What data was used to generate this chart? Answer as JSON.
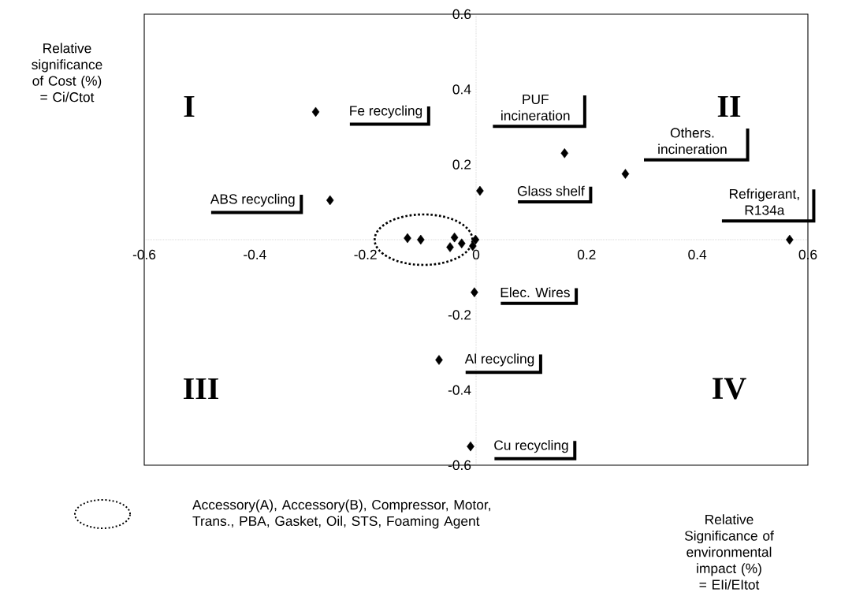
{
  "chart_data": {
    "type": "scatter",
    "color": "#000000",
    "marker": "diamond",
    "x": [
      -0.29,
      -0.264,
      0.16,
      0.27,
      0.007,
      0.567,
      -0.003,
      -0.067,
      -0.01,
      -0.124,
      -0.1,
      -0.039,
      -0.047,
      -0.026,
      -0.001,
      -0.006
    ],
    "values": [
      0.34,
      0.105,
      0.23,
      0.175,
      0.13,
      0,
      -0.14,
      -0.32,
      -0.55,
      0.004,
      0,
      0.006,
      -0.02,
      -0.01,
      0,
      -0.017
    ],
    "xlim": [
      -0.6,
      0.6
    ],
    "ylim": [
      -0.6,
      0.6
    ],
    "xticks": [
      -0.6,
      -0.4,
      -0.2,
      0,
      0.2,
      0.4,
      0.6
    ],
    "yticks": [
      -0.6,
      -0.4,
      -0.2,
      0.2,
      0.4,
      0.6
    ],
    "xlabel": "Relative Significance of environmental impact (%) = EIi/EItot",
    "ylabel": "Relative significance of Cost (%) = Ci/Ctot",
    "annotations": [
      {
        "text": "Fe recycling",
        "x": -0.29,
        "y": 0.34
      },
      {
        "text": "ABS recycling",
        "x": -0.264,
        "y": 0.105
      },
      {
        "text": "PUF incineration",
        "x": 0.16,
        "y": 0.23
      },
      {
        "text": "Others. incineration",
        "x": 0.27,
        "y": 0.175
      },
      {
        "text": "Glass shelf",
        "x": 0.007,
        "y": 0.13
      },
      {
        "text": "Refrigerant, R134a",
        "x": 0.567,
        "y": 0
      },
      {
        "text": "Elec. Wires",
        "x": -0.003,
        "y": -0.14
      },
      {
        "text": "Al recycling",
        "x": -0.067,
        "y": -0.32
      },
      {
        "text": "Cu recycling",
        "x": -0.01,
        "y": -0.55
      },
      "I",
      "II",
      "III",
      "IV",
      "Accessory(A), Accessory(B), Compressor, Motor, Trans., PBA, Gasket, Oil, STS, Foaming Agent"
    ]
  }
}
